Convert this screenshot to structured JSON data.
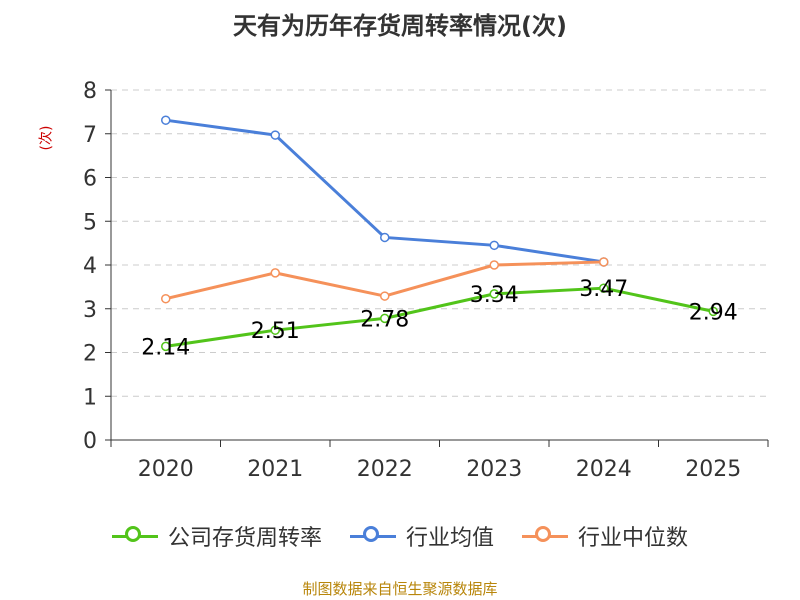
{
  "chart_data": {
    "type": "line",
    "title": "天有为历年存货周转率情况(次)",
    "ylabel": "(次)",
    "categories": [
      "2020",
      "2021",
      "2022",
      "2023",
      "2024",
      "2025"
    ],
    "ylim": [
      0,
      8
    ],
    "yticks": [
      0,
      1,
      2,
      3,
      4,
      5,
      6,
      7,
      8
    ],
    "grid": true,
    "legend_position": "bottom",
    "series": [
      {
        "name": "公司存货周转率",
        "color": "#52c41a",
        "values": [
          2.14,
          2.51,
          2.78,
          3.34,
          3.47,
          2.94
        ],
        "labels": [
          "2.14",
          "2.51",
          "2.78",
          "3.34",
          "3.47",
          "2.94"
        ]
      },
      {
        "name": "行业均值",
        "color": "#4a7fd9",
        "values": [
          7.31,
          6.97,
          4.63,
          4.45,
          4.07,
          null
        ]
      },
      {
        "name": "行业中位数",
        "color": "#f5915a",
        "values": [
          3.23,
          3.82,
          3.29,
          4.0,
          4.07,
          null
        ]
      }
    ]
  },
  "source": "制图数据来自恒生聚源数据库"
}
